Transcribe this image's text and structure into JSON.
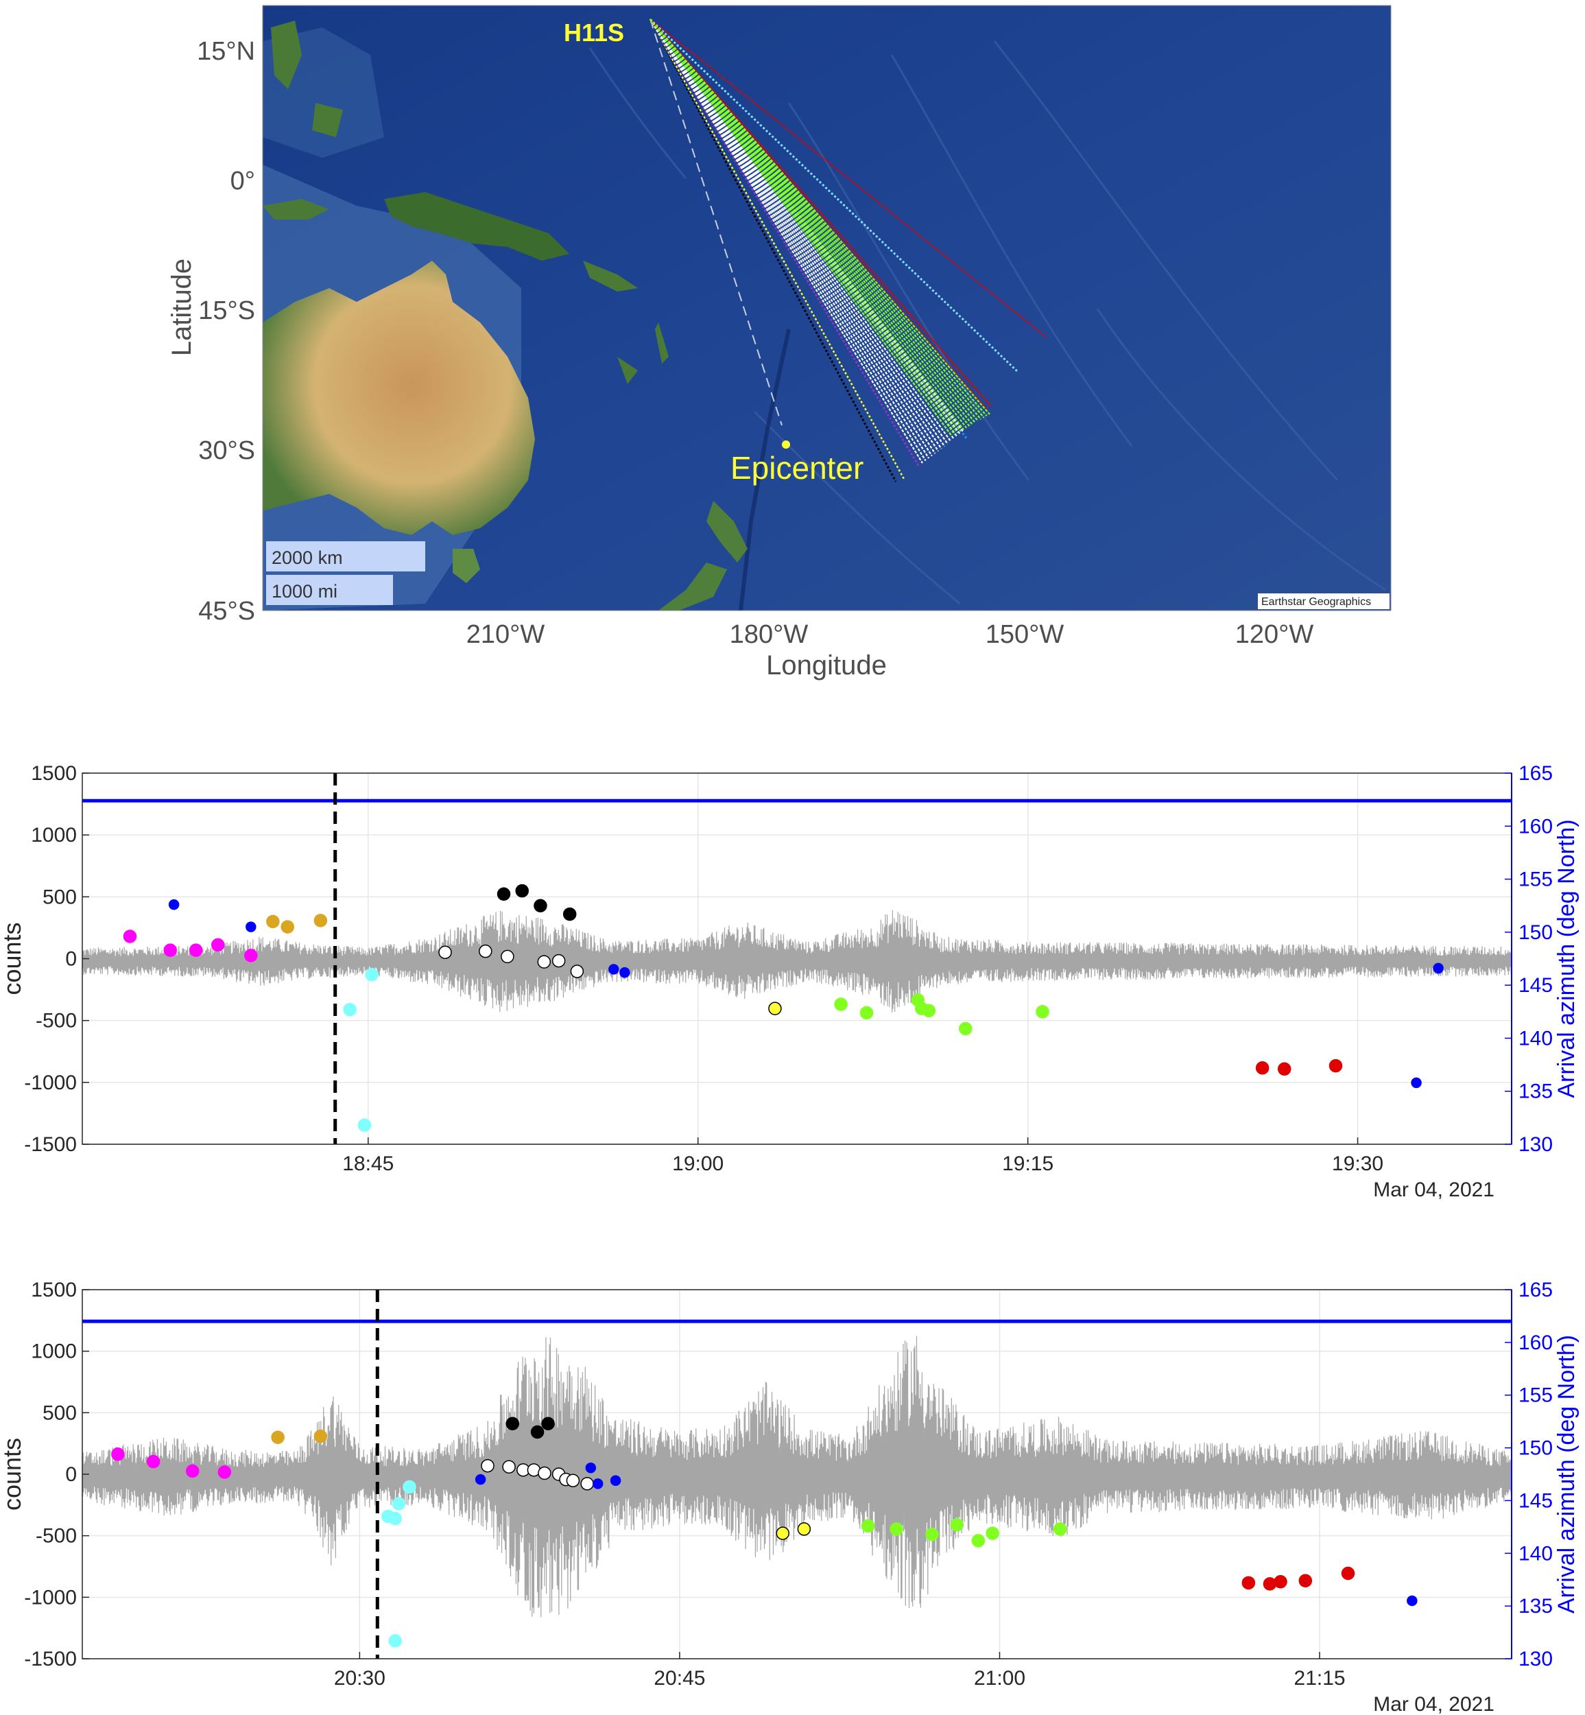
{
  "colors": {
    "ocean": "#1e3f8c",
    "land": "#b8a066",
    "signal": "#a6a6a6",
    "azimuth_line": "#0000ff",
    "axis": "#262626",
    "label_yellow": "#ffff33"
  },
  "map": {
    "station_label": "H11S",
    "epicenter_label": "Epicenter",
    "xlabel": "Longitude",
    "ylabel": "Latitude",
    "lon_ticks": [
      "210°W",
      "180°W",
      "150°W",
      "120°W"
    ],
    "lat_ticks": [
      "15°N",
      "0°",
      "15°S",
      "30°S",
      "45°S"
    ],
    "scale_km": "2000 km",
    "scale_mi": "1000 mi",
    "credit": "Earthstar Geographics"
  },
  "chart_data": [
    {
      "type": "scatter",
      "panel": "middle",
      "ylabel_left": "counts",
      "ylabel_right": "Arrival azimuth (deg North)",
      "ylim_left": [
        -1500,
        1500
      ],
      "ylim_right": [
        130,
        165
      ],
      "left_ticks": [
        "1500",
        "1000",
        "500",
        "0",
        "-500",
        "-1000",
        "-1500"
      ],
      "right_ticks": [
        "165",
        "160",
        "155",
        "150",
        "145",
        "140",
        "135",
        "130"
      ],
      "x_ticks": [
        "18:45",
        "19:00",
        "19:15",
        "19:30"
      ],
      "date_label": "Mar 04, 2021",
      "xlim": [
        "18:32",
        "19:37"
      ],
      "grid": true,
      "reference_azimuth": 162.4,
      "dashed_time": "18:43:30",
      "signal_envelope": [
        {
          "t": "18:32",
          "amp": 110
        },
        {
          "t": "18:38",
          "amp": 130
        },
        {
          "t": "18:40",
          "amp": 210
        },
        {
          "t": "18:42",
          "amp": 150
        },
        {
          "t": "18:45",
          "amp": 110
        },
        {
          "t": "18:48",
          "amp": 210
        },
        {
          "t": "18:51",
          "amp": 420
        },
        {
          "t": "18:53",
          "amp": 360
        },
        {
          "t": "18:56",
          "amp": 170
        },
        {
          "t": "19:00",
          "amp": 190
        },
        {
          "t": "19:02",
          "amp": 330
        },
        {
          "t": "19:05",
          "amp": 160
        },
        {
          "t": "19:08",
          "amp": 300
        },
        {
          "t": "19:09",
          "amp": 460
        },
        {
          "t": "19:11",
          "amp": 200
        },
        {
          "t": "19:15",
          "amp": 160
        },
        {
          "t": "19:37",
          "amp": 120
        }
      ],
      "points": [
        {
          "time": "18:34:10",
          "az": 149.6,
          "color": "#ff00ff"
        },
        {
          "time": "18:36:00",
          "az": 148.3,
          "color": "#ff00ff"
        },
        {
          "time": "18:37:10",
          "az": 148.3,
          "color": "#ff00ff"
        },
        {
          "time": "18:38:10",
          "az": 148.8,
          "color": "#ff00ff"
        },
        {
          "time": "18:39:40",
          "az": 147.8,
          "color": "#ff00ff"
        },
        {
          "time": "18:36:10",
          "az": 152.6,
          "color": "#0000ff",
          "small": true
        },
        {
          "time": "18:39:40",
          "az": 150.5,
          "color": "#0000ff",
          "small": true
        },
        {
          "time": "18:40:40",
          "az": 151.0,
          "color": "#daa520"
        },
        {
          "time": "18:41:20",
          "az": 150.5,
          "color": "#daa520"
        },
        {
          "time": "18:42:50",
          "az": 151.1,
          "color": "#daa520"
        },
        {
          "time": "18:44:10",
          "az": 142.7,
          "color": "#80ffff"
        },
        {
          "time": "18:45:10",
          "az": 146.0,
          "color": "#80ffff"
        },
        {
          "time": "18:44:50",
          "az": 131.8,
          "color": "#80ffff"
        },
        {
          "time": "18:51:10",
          "az": 153.6,
          "color": "#000000"
        },
        {
          "time": "18:52:00",
          "az": 153.9,
          "color": "#000000"
        },
        {
          "time": "18:52:50",
          "az": 152.5,
          "color": "#000000"
        },
        {
          "time": "18:54:10",
          "az": 151.7,
          "color": "#000000"
        },
        {
          "time": "18:48:30",
          "az": 148.1,
          "color": "#ffffff"
        },
        {
          "time": "18:50:20",
          "az": 148.2,
          "color": "#ffffff"
        },
        {
          "time": "18:51:20",
          "az": 147.7,
          "color": "#ffffff"
        },
        {
          "time": "18:53:00",
          "az": 147.2,
          "color": "#ffffff"
        },
        {
          "time": "18:53:40",
          "az": 147.3,
          "color": "#ffffff"
        },
        {
          "time": "18:54:30",
          "az": 146.3,
          "color": "#ffffff"
        },
        {
          "time": "18:56:10",
          "az": 146.5,
          "color": "#0000ff",
          "small": true
        },
        {
          "time": "18:56:40",
          "az": 146.2,
          "color": "#0000ff",
          "small": true
        },
        {
          "time": "19:03:30",
          "az": 142.8,
          "color": "#ffff33"
        },
        {
          "time": "19:06:30",
          "az": 143.2,
          "color": "#80ff20"
        },
        {
          "time": "19:07:40",
          "az": 142.4,
          "color": "#80ff20"
        },
        {
          "time": "19:10:00",
          "az": 143.6,
          "color": "#80ff20"
        },
        {
          "time": "19:10:10",
          "az": 142.8,
          "color": "#80ff20"
        },
        {
          "time": "19:10:30",
          "az": 142.6,
          "color": "#80ff20"
        },
        {
          "time": "19:12:10",
          "az": 140.9,
          "color": "#80ff20"
        },
        {
          "time": "19:15:40",
          "az": 142.5,
          "color": "#80ff20"
        },
        {
          "time": "19:25:40",
          "az": 137.2,
          "color": "#e00000"
        },
        {
          "time": "19:26:40",
          "az": 137.1,
          "color": "#e00000"
        },
        {
          "time": "19:29:00",
          "az": 137.4,
          "color": "#e00000"
        },
        {
          "time": "19:32:40",
          "az": 135.8,
          "color": "#0000ff",
          "small": true
        },
        {
          "time": "19:33:40",
          "az": 146.6,
          "color": "#0000ff",
          "small": true
        }
      ]
    },
    {
      "type": "scatter",
      "panel": "bottom",
      "ylabel_left": "counts",
      "ylabel_right": "Arrival azimuth (deg North)",
      "ylim_left": [
        -1500,
        1500
      ],
      "ylim_right": [
        130,
        165
      ],
      "left_ticks": [
        "1500",
        "1000",
        "500",
        "0",
        "-500",
        "-1000",
        "-1500"
      ],
      "right_ticks": [
        "165",
        "160",
        "155",
        "150",
        "145",
        "140",
        "135",
        "130"
      ],
      "x_ticks": [
        "20:30",
        "20:45",
        "21:00",
        "21:15"
      ],
      "date_label": "Mar 04, 2021",
      "xlim": [
        "20:17",
        "21:24"
      ],
      "grid": true,
      "reference_azimuth": 162.0,
      "dashed_time": "20:30:50",
      "signal_envelope": [
        {
          "t": "20:17",
          "amp": 200
        },
        {
          "t": "20:21",
          "amp": 330
        },
        {
          "t": "20:24",
          "amp": 220
        },
        {
          "t": "20:27",
          "amp": 210
        },
        {
          "t": "20:28",
          "amp": 450
        },
        {
          "t": "20:28:40",
          "amp": 760
        },
        {
          "t": "20:30",
          "amp": 260
        },
        {
          "t": "20:33",
          "amp": 230
        },
        {
          "t": "20:36",
          "amp": 450
        },
        {
          "t": "20:38",
          "amp": 1180
        },
        {
          "t": "20:40",
          "amp": 1100
        },
        {
          "t": "20:42",
          "amp": 500
        },
        {
          "t": "20:45",
          "amp": 380
        },
        {
          "t": "20:47",
          "amp": 420
        },
        {
          "t": "20:49",
          "amp": 780
        },
        {
          "t": "20:51",
          "amp": 400
        },
        {
          "t": "20:53",
          "amp": 330
        },
        {
          "t": "20:56",
          "amp": 1250
        },
        {
          "t": "20:57",
          "amp": 800
        },
        {
          "t": "20:59",
          "amp": 380
        },
        {
          "t": "21:03",
          "amp": 500
        },
        {
          "t": "21:05",
          "amp": 300
        },
        {
          "t": "21:15",
          "amp": 260
        },
        {
          "t": "21:20",
          "amp": 380
        },
        {
          "t": "21:24",
          "amp": 200
        }
      ],
      "points": [
        {
          "time": "20:18:40",
          "az": 149.4,
          "color": "#ff00ff"
        },
        {
          "time": "20:20:20",
          "az": 148.7,
          "color": "#ff00ff"
        },
        {
          "time": "20:22:10",
          "az": 147.8,
          "color": "#ff00ff"
        },
        {
          "time": "20:23:40",
          "az": 147.7,
          "color": "#ff00ff"
        },
        {
          "time": "20:26:10",
          "az": 151.0,
          "color": "#daa520"
        },
        {
          "time": "20:28:10",
          "az": 151.1,
          "color": "#daa520"
        },
        {
          "time": "20:31:20",
          "az": 143.5,
          "color": "#80ffff"
        },
        {
          "time": "20:31:40",
          "az": 143.3,
          "color": "#80ffff"
        },
        {
          "time": "20:31:50",
          "az": 144.7,
          "color": "#80ffff"
        },
        {
          "time": "20:32:20",
          "az": 146.3,
          "color": "#80ffff"
        },
        {
          "time": "20:31:40",
          "az": 131.7,
          "color": "#80ffff"
        },
        {
          "time": "20:35:40",
          "az": 147.0,
          "color": "#0000ff",
          "small": true
        },
        {
          "time": "20:37:10",
          "az": 152.3,
          "color": "#000000"
        },
        {
          "time": "20:38:20",
          "az": 151.5,
          "color": "#000000"
        },
        {
          "time": "20:38:50",
          "az": 152.3,
          "color": "#000000"
        },
        {
          "time": "20:36:00",
          "az": 148.3,
          "color": "#ffffff"
        },
        {
          "time": "20:37:00",
          "az": 148.2,
          "color": "#ffffff"
        },
        {
          "time": "20:37:40",
          "az": 147.9,
          "color": "#ffffff"
        },
        {
          "time": "20:38:10",
          "az": 147.9,
          "color": "#ffffff"
        },
        {
          "time": "20:38:40",
          "az": 147.6,
          "color": "#ffffff"
        },
        {
          "time": "20:39:20",
          "az": 147.5,
          "color": "#ffffff"
        },
        {
          "time": "20:39:40",
          "az": 147.0,
          "color": "#ffffff"
        },
        {
          "time": "20:40:00",
          "az": 146.9,
          "color": "#ffffff"
        },
        {
          "time": "20:40:40",
          "az": 146.6,
          "color": "#ffffff"
        },
        {
          "time": "20:40:50",
          "az": 148.1,
          "color": "#0000ff",
          "small": true
        },
        {
          "time": "20:41:10",
          "az": 146.6,
          "color": "#0000ff",
          "small": true
        },
        {
          "time": "20:42:00",
          "az": 146.9,
          "color": "#0000ff",
          "small": true
        },
        {
          "time": "20:49:50",
          "az": 141.9,
          "color": "#ffff33"
        },
        {
          "time": "20:50:50",
          "az": 142.3,
          "color": "#ffff33"
        },
        {
          "time": "20:53:50",
          "az": 142.6,
          "color": "#80ff20"
        },
        {
          "time": "20:55:10",
          "az": 142.3,
          "color": "#80ff20"
        },
        {
          "time": "20:56:50",
          "az": 141.8,
          "color": "#80ff20"
        },
        {
          "time": "20:58:00",
          "az": 142.7,
          "color": "#80ff20"
        },
        {
          "time": "20:59:00",
          "az": 141.2,
          "color": "#80ff20"
        },
        {
          "time": "20:59:40",
          "az": 141.9,
          "color": "#80ff20"
        },
        {
          "time": "21:02:50",
          "az": 142.3,
          "color": "#80ff20"
        },
        {
          "time": "21:11:40",
          "az": 137.2,
          "color": "#e00000"
        },
        {
          "time": "21:12:40",
          "az": 137.1,
          "color": "#e00000"
        },
        {
          "time": "21:13:10",
          "az": 137.3,
          "color": "#e00000"
        },
        {
          "time": "21:14:20",
          "az": 137.4,
          "color": "#e00000"
        },
        {
          "time": "21:16:20",
          "az": 138.1,
          "color": "#e00000"
        },
        {
          "time": "21:19:20",
          "az": 135.5,
          "color": "#0000ff",
          "small": true
        }
      ]
    }
  ]
}
